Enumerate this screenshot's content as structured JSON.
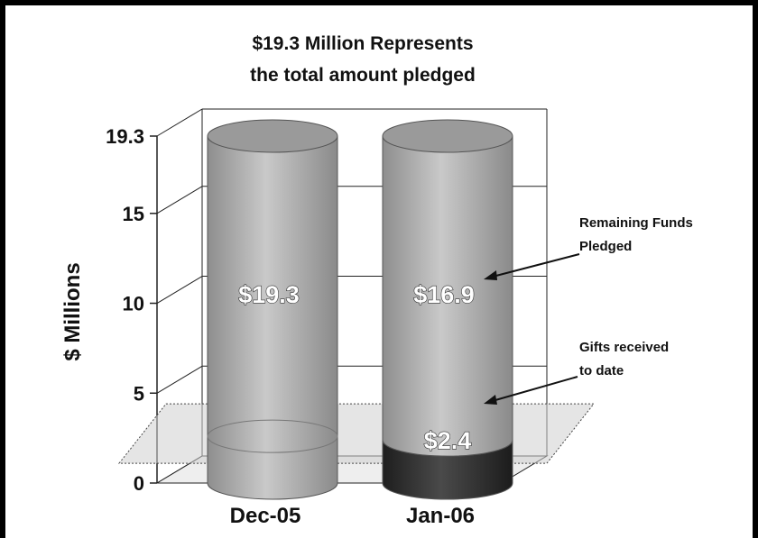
{
  "chart_data": {
    "type": "bar",
    "title": "$19.3 Million Represents",
    "subtitle": "the total amount pledged",
    "ylabel": "$ Millions",
    "xlabel": "",
    "categories": [
      "Dec-05",
      "Jan-06"
    ],
    "ylim": [
      0,
      19.3
    ],
    "yticks": [
      "0",
      "5",
      "10",
      "15",
      "19.3"
    ],
    "ytick_values": [
      0,
      5,
      10,
      15,
      19.3
    ],
    "series": [
      {
        "name": "Gifts received to date",
        "values": [
          0,
          2.4
        ],
        "labels": [
          "",
          "$2.4"
        ],
        "color": "#2a2a2a"
      },
      {
        "name": "Remaining Funds Pledged",
        "values": [
          19.3,
          16.9
        ],
        "labels": [
          "$19.3",
          "$16.9"
        ],
        "color": "#a7a7a7"
      }
    ],
    "stacked": true,
    "style": "3d-cylinder",
    "reference_band": [
      1.6,
      3.0
    ],
    "annotations": [
      {
        "lines": [
          "Remaining Funds",
          "Pledged"
        ]
      },
      {
        "lines": [
          "Gifts received",
          "to date"
        ]
      }
    ],
    "grid": true
  }
}
